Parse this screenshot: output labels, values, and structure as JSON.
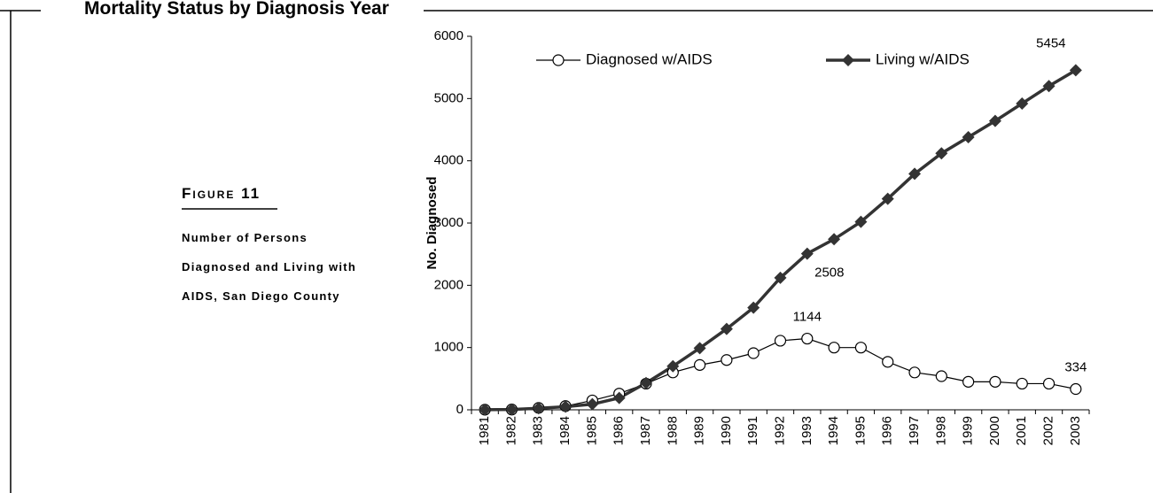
{
  "header": {
    "title": "Mortality Status by Diagnosis Year"
  },
  "figure": {
    "label": "Figure 11",
    "caption": [
      "Number of Persons",
      "Diagnosed and Living with",
      "AIDS, San Diego County"
    ]
  },
  "chart_data": {
    "type": "line",
    "y_label": "No. Diagnosed",
    "categories": [
      "1981",
      "1982",
      "1983",
      "1984",
      "1985",
      "1986",
      "1987",
      "1988",
      "1989",
      "1990",
      "1991",
      "1992",
      "1993",
      "1994",
      "1995",
      "1996",
      "1997",
      "1998",
      "1999",
      "2000",
      "2001",
      "2002",
      "2003"
    ],
    "series": [
      {
        "name": "Diagnosed w/AIDS",
        "color": "#000000",
        "marker": "circle",
        "values": [
          2,
          5,
          30,
          60,
          150,
          260,
          420,
          600,
          720,
          800,
          910,
          1110,
          1144,
          1000,
          1000,
          770,
          600,
          540,
          450,
          450,
          420,
          420,
          334
        ],
        "value_labels": [
          null,
          null,
          null,
          null,
          null,
          null,
          null,
          null,
          null,
          null,
          null,
          null,
          "1144",
          null,
          null,
          null,
          null,
          null,
          null,
          null,
          null,
          null,
          "334"
        ]
      },
      {
        "name": "Living w/AIDS",
        "color": "#333333",
        "marker": "diamond",
        "values": [
          2,
          5,
          25,
          50,
          90,
          190,
          430,
          700,
          990,
          1300,
          1640,
          2120,
          2508,
          2740,
          3020,
          3390,
          3790,
          4120,
          4380,
          4640,
          4920,
          5200,
          5454
        ],
        "value_labels": [
          null,
          null,
          null,
          null,
          null,
          null,
          null,
          null,
          null,
          null,
          null,
          null,
          "2508",
          null,
          null,
          null,
          null,
          null,
          null,
          null,
          null,
          null,
          "5454"
        ]
      }
    ],
    "ylim": [
      0,
      6000
    ],
    "yticks": [
      0,
      1000,
      2000,
      3000,
      4000,
      5000,
      6000
    ],
    "grid": false
  }
}
